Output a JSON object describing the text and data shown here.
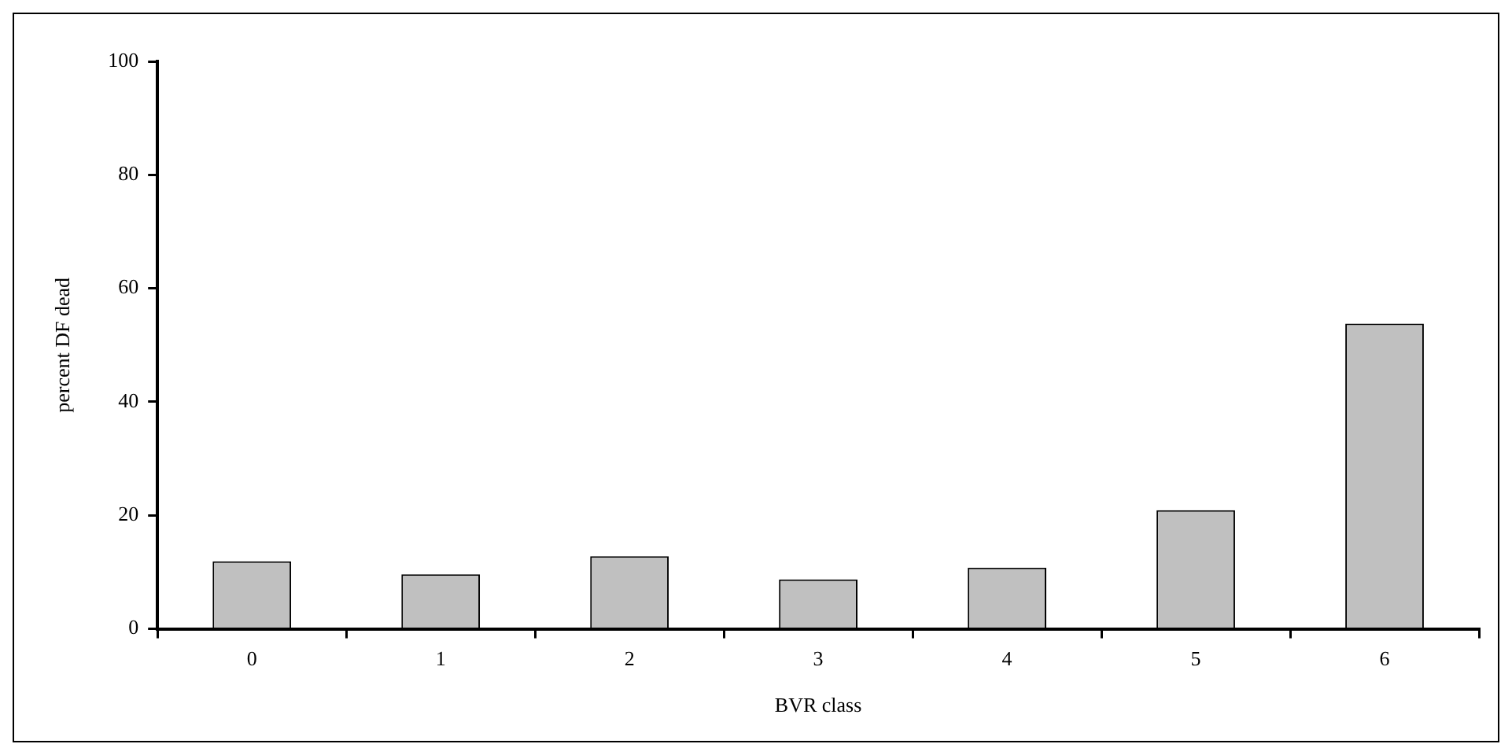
{
  "chart_data": {
    "type": "bar",
    "xlabel": "BVR class",
    "ylabel": "percent DF dead",
    "categories": [
      "0",
      "1",
      "2",
      "3",
      "4",
      "5",
      "6"
    ],
    "values": [
      11.9,
      9.6,
      12.8,
      8.7,
      10.8,
      20.9,
      53.8
    ],
    "color": "#c0c0c0",
    "ylim": [
      0,
      100
    ],
    "yticks": [
      0,
      20,
      40,
      60,
      80,
      100
    ],
    "grid": false,
    "legend": false
  }
}
